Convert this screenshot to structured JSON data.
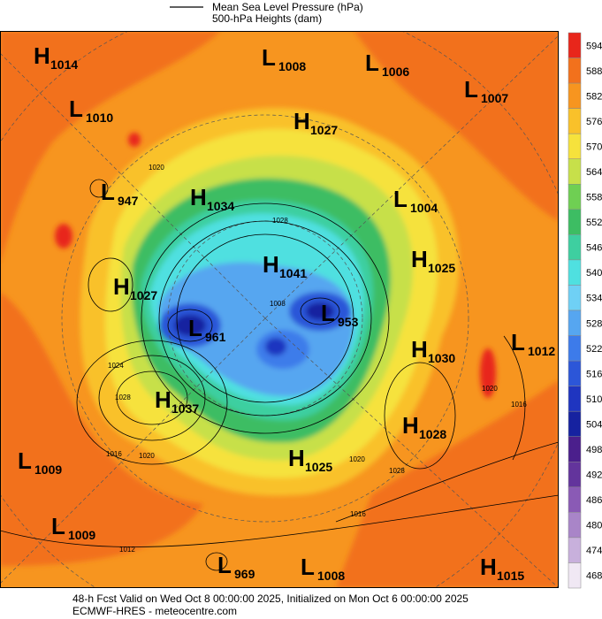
{
  "legend": {
    "line1": "Mean Sea Level Pressure (hPa)",
    "line2": "500-hPa Heights (dam)"
  },
  "centers": [
    {
      "type": "H",
      "pressure": 1014
    },
    {
      "type": "L",
      "pressure": 1008
    },
    {
      "type": "L",
      "pressure": 1006
    },
    {
      "type": "L",
      "pressure": 1007
    },
    {
      "type": "L",
      "pressure": 1010
    },
    {
      "type": "H",
      "pressure": 1027
    },
    {
      "type": "L",
      "pressure": 947
    },
    {
      "type": "H",
      "pressure": 1034
    },
    {
      "type": "L",
      "pressure": 1004
    },
    {
      "type": "H",
      "pressure": 1041
    },
    {
      "type": "H",
      "pressure": 1025
    },
    {
      "type": "H",
      "pressure": 1027
    },
    {
      "type": "L",
      "pressure": 961
    },
    {
      "type": "L",
      "pressure": 953
    },
    {
      "type": "H",
      "pressure": 1030
    },
    {
      "type": "L",
      "pressure": 1012
    },
    {
      "type": "H",
      "pressure": 1037
    },
    {
      "type": "H",
      "pressure": 1028
    },
    {
      "type": "H",
      "pressure": 1025
    },
    {
      "type": "L",
      "pressure": 1009
    },
    {
      "type": "L",
      "pressure": 1009
    },
    {
      "type": "L",
      "pressure": 969
    },
    {
      "type": "L",
      "pressure": 1008
    },
    {
      "type": "H",
      "pressure": 1015
    }
  ],
  "contour_labels": [
    1024,
    1028,
    1020,
    1016,
    1012,
    1016,
    1028,
    1020,
    1008,
    1016,
    1020,
    1028,
    1020
  ],
  "colorbar": {
    "levels": [
      {
        "value": 594,
        "color": "#e8261b"
      },
      {
        "value": 588,
        "color": "#f2711c"
      },
      {
        "value": 582,
        "color": "#f7951f"
      },
      {
        "value": 576,
        "color": "#f9c12a"
      },
      {
        "value": 570,
        "color": "#f6e23c"
      },
      {
        "value": 564,
        "color": "#c7e04a"
      },
      {
        "value": 558,
        "color": "#6fcf53"
      },
      {
        "value": 552,
        "color": "#3dbd63"
      },
      {
        "value": 546,
        "color": "#3ecfa0"
      },
      {
        "value": 540,
        "color": "#4fe0e0"
      },
      {
        "value": 534,
        "color": "#6fd0f5"
      },
      {
        "value": 528,
        "color": "#56a6f0"
      },
      {
        "value": 522,
        "color": "#3d7bea"
      },
      {
        "value": 516,
        "color": "#2c56d8"
      },
      {
        "value": 510,
        "color": "#1f35c0"
      },
      {
        "value": 504,
        "color": "#1622a0"
      },
      {
        "value": 498,
        "color": "#4b1f8c"
      },
      {
        "value": 492,
        "color": "#63349c"
      },
      {
        "value": 486,
        "color": "#8a5ab5"
      },
      {
        "value": 480,
        "color": "#a985c8"
      },
      {
        "value": 474,
        "color": "#c8b0dc"
      },
      {
        "value": 468,
        "color": "#f0e8f4"
      }
    ]
  },
  "footer": {
    "line1": "48-h Fcst Valid on Wed Oct  8 00:00:00 2025, Initialized on Mon Oct  6 00:00:00 2025",
    "line2": "ECMWF-HRES  - meteocentre.com"
  }
}
